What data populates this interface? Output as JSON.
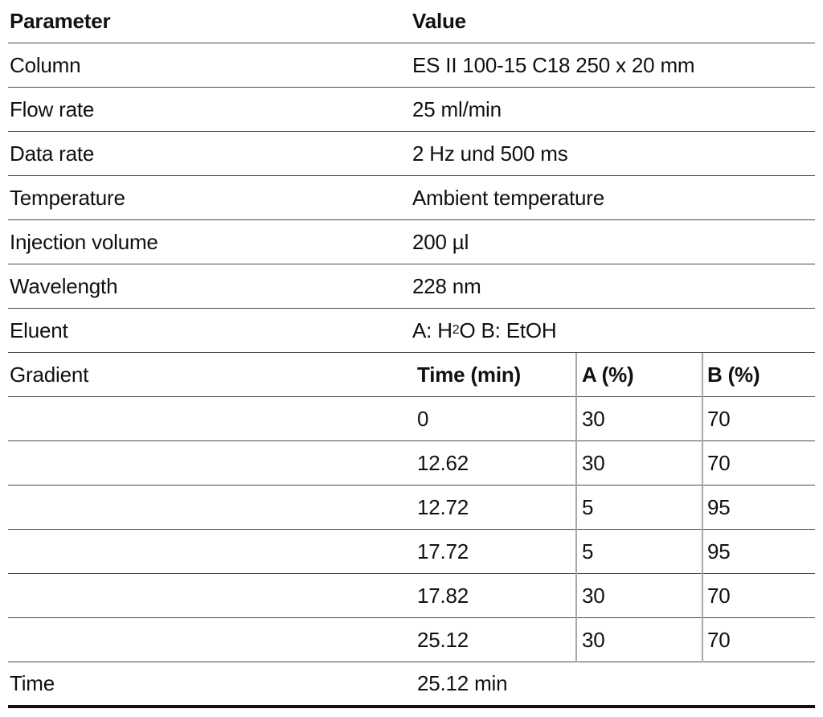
{
  "header": {
    "parameter": "Parameter",
    "value": "Value"
  },
  "rows": [
    {
      "parameter": "Column",
      "value": "ES II 100-15 C18 250 x 20 mm"
    },
    {
      "parameter": "Flow rate",
      "value": "25 ml/min"
    },
    {
      "parameter": "Data rate",
      "value": "2 Hz und 500 ms"
    },
    {
      "parameter": "Temperature",
      "value": "Ambient temperature"
    },
    {
      "parameter": "Injection volume",
      "value": "200 µl"
    },
    {
      "parameter": "Wavelength",
      "value": "228 nm"
    },
    {
      "parameter": "Eluent",
      "value_prefix": "A: H",
      "value_sub": "2",
      "value_suffix": "O B: EtOH"
    }
  ],
  "gradient": {
    "label": "Gradient",
    "columns": [
      "Time (min)",
      "A (%)",
      "B (%)"
    ],
    "steps": [
      {
        "time": "0",
        "a": "30",
        "b": "70"
      },
      {
        "time": "12.62",
        "a": "30",
        "b": "70"
      },
      {
        "time": "12.72",
        "a": "5",
        "b": "95"
      },
      {
        "time": "17.72",
        "a": "5",
        "b": "95"
      },
      {
        "time": "17.82",
        "a": "30",
        "b": "70"
      },
      {
        "time": "25.12",
        "a": "30",
        "b": "70"
      }
    ]
  },
  "footer": {
    "parameter": "Time",
    "value": "25.12 min"
  }
}
